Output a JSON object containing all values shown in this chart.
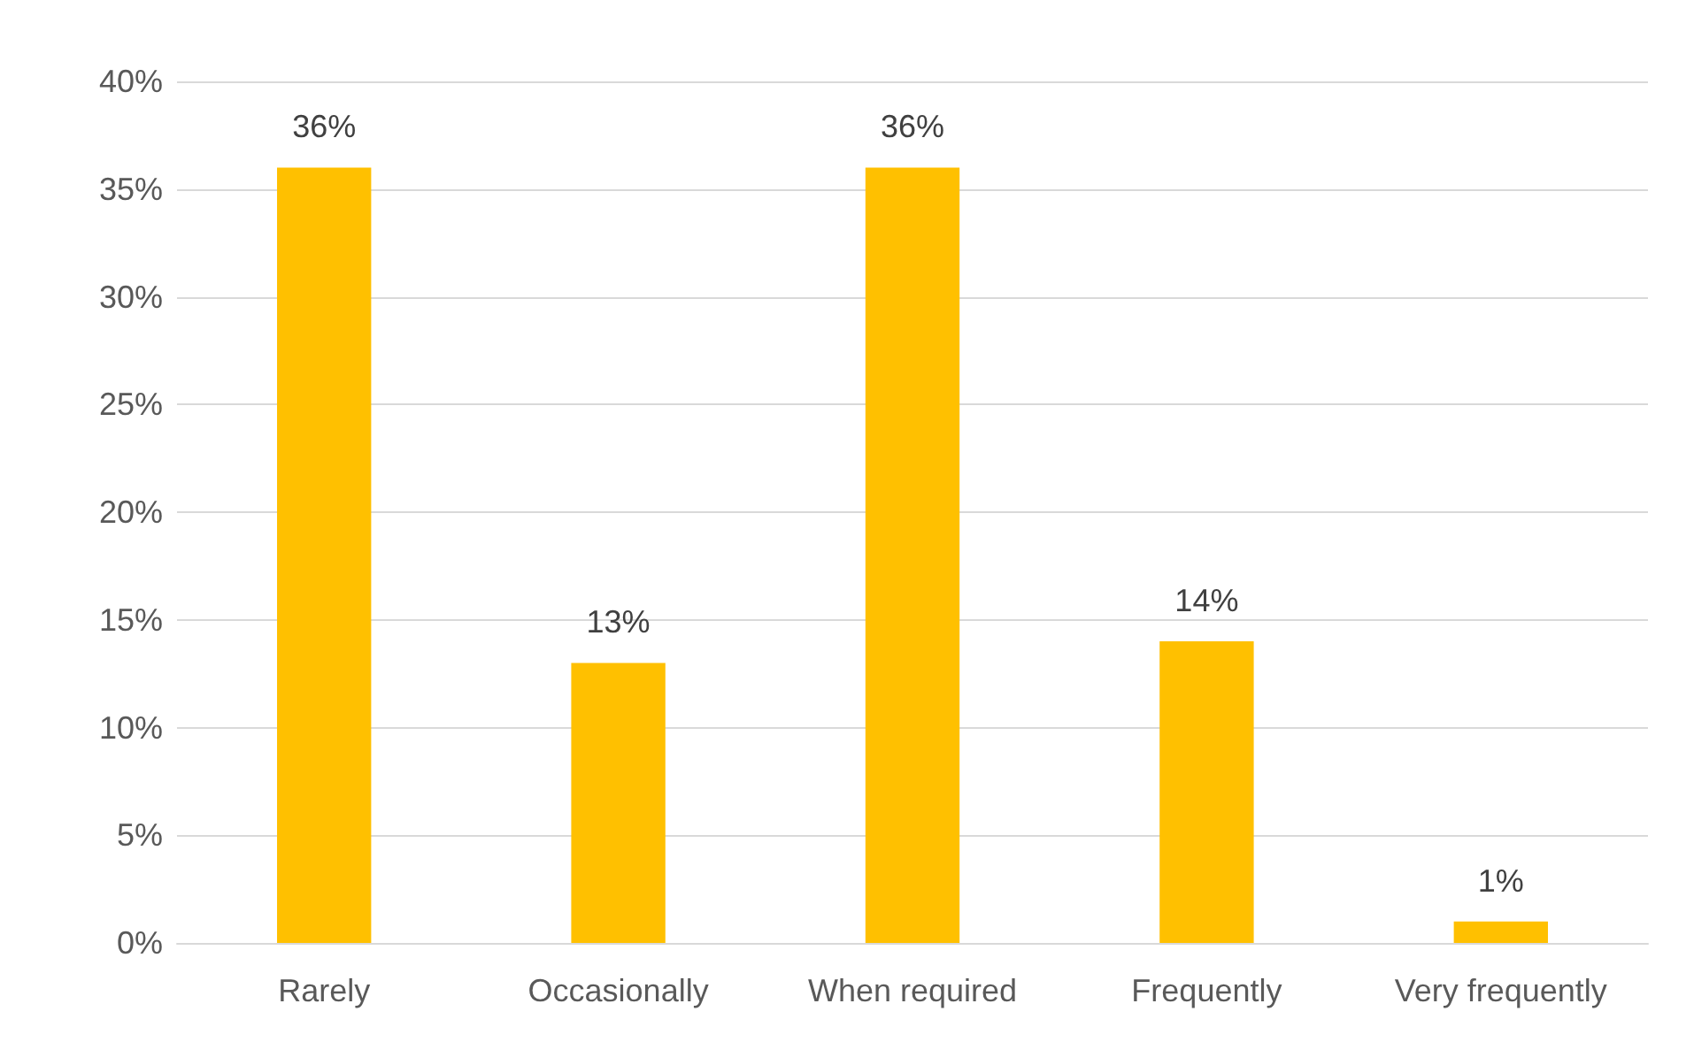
{
  "chart_data": {
    "type": "bar",
    "categories": [
      "Rarely",
      "Occasionally",
      "When required",
      "Frequently",
      "Very frequently"
    ],
    "values": [
      36,
      13,
      36,
      14,
      1
    ],
    "color": "#ffc000",
    "value_labels": [
      "36%",
      "13%",
      "36%",
      "14%",
      "1%"
    ],
    "ylim": [
      0,
      40
    ],
    "yticks": [
      {
        "value": 0,
        "label": "0%"
      },
      {
        "value": 5,
        "label": "5%"
      },
      {
        "value": 10,
        "label": "10%"
      },
      {
        "value": 15,
        "label": "15%"
      },
      {
        "value": 20,
        "label": "20%"
      },
      {
        "value": 25,
        "label": "25%"
      },
      {
        "value": 30,
        "label": "30%"
      },
      {
        "value": 35,
        "label": "35%"
      },
      {
        "value": 40,
        "label": "40%"
      }
    ],
    "grid": "y"
  }
}
